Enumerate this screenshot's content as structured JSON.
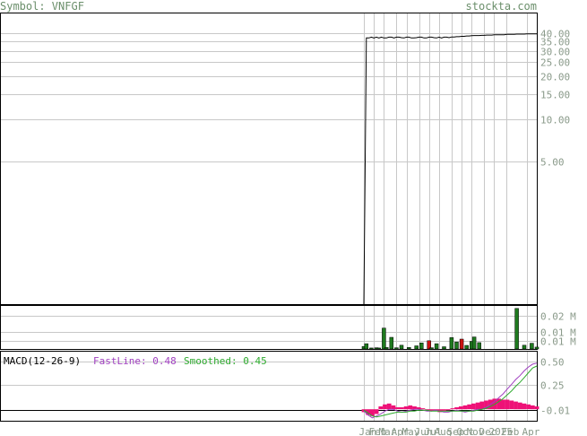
{
  "header": {
    "symbol_label": "Symbol: VNFGF",
    "site": "stockta.com"
  },
  "colors": {
    "price_line": "#000000",
    "grid": "#c8c8c8",
    "volume_up": "#1f7a1f",
    "volume_down": "#cc1111",
    "histogram": "#ee1177",
    "fast_line": "#a040c0",
    "smoothed_line": "#2eaa2e",
    "tick_text": "#8a9a8a",
    "title_text": "#6b8f6b"
  },
  "chart_data": [
    {
      "type": "line",
      "panel": "price",
      "y_scale": "log",
      "ylim": [
        0.5,
        55
      ],
      "y_ticks": [
        "40.00",
        "35.00",
        "30.00",
        "25.00",
        "20.00",
        "15.00",
        "10.00",
        "5.00"
      ],
      "x": [
        "2024-01-05",
        "2024-01-12",
        "2024-01-19",
        "2024-01-26",
        "2024-02-02",
        "2024-02-09",
        "2024-02-16",
        "2024-02-23",
        "2024-03-01",
        "2024-03-08",
        "2024-03-15",
        "2024-03-22",
        "2024-03-29",
        "2024-04-05",
        "2024-04-12",
        "2024-04-19",
        "2024-04-26",
        "2024-05-03",
        "2024-05-10",
        "2024-05-17",
        "2024-05-24",
        "2024-05-31",
        "2024-06-07",
        "2024-06-14",
        "2024-06-21",
        "2024-06-28",
        "2024-07-05",
        "2024-07-12",
        "2024-07-19",
        "2024-07-26",
        "2024-08-02",
        "2024-08-09",
        "2024-08-16",
        "2024-08-23",
        "2024-08-30",
        "2024-09-06",
        "2024-09-13",
        "2024-09-20",
        "2024-09-27",
        "2024-10-04",
        "2024-10-11",
        "2024-10-18",
        "2024-10-25",
        "2024-11-01",
        "2024-11-08",
        "2024-11-15",
        "2024-11-22",
        "2024-11-29",
        "2024-12-06",
        "2024-12-13",
        "2024-12-20",
        "2024-12-27",
        "2025-01-03",
        "2025-01-10",
        "2025-01-17",
        "2025-01-24",
        "2025-01-31",
        "2025-02-07",
        "2025-02-14",
        "2025-02-21",
        "2025-02-28",
        "2025-03-07",
        "2025-03-14",
        "2025-03-21",
        "2025-03-28",
        "2025-04-04",
        "2025-04-11",
        "2025-04-18",
        "2025-04-25",
        "2025-05-02"
      ],
      "values": [
        0.5,
        37,
        37,
        37.5,
        37,
        37.5,
        37,
        37.5,
        37,
        37,
        37.5,
        37.5,
        37,
        37.5,
        37.5,
        37.2,
        37,
        37.5,
        37.5,
        37,
        37,
        37.2,
        37.5,
        37.5,
        37,
        37,
        37.5,
        37.5,
        37.2,
        37,
        37.5,
        37,
        37.5,
        37.5,
        37.2,
        37.6,
        37.6,
        37.8,
        37.8,
        38,
        38,
        38.2,
        38.2,
        38.4,
        38.5,
        38.5,
        38.5,
        38.6,
        38.6,
        38.8,
        38.8,
        38.8,
        39,
        39,
        39,
        39,
        39,
        39.2,
        39.2,
        39.2,
        39.2,
        39.4,
        39.4,
        39.4,
        39.4,
        39.5,
        39.5,
        39.5,
        39.5,
        39.5
      ]
    },
    {
      "type": "bar",
      "panel": "volume",
      "y_ticks": [
        "0.02 M",
        "0.01 M",
        "0.01 M"
      ],
      "bars": [
        {
          "date": "2024-01-05",
          "value": 0.002,
          "direction": "up"
        },
        {
          "date": "2024-01-12",
          "value": 0.0042,
          "direction": "up"
        },
        {
          "date": "2024-01-26",
          "value": 0.0008,
          "direction": "up"
        },
        {
          "date": "2024-02-09",
          "value": 0.001,
          "direction": "up"
        },
        {
          "date": "2024-02-16",
          "value": 0.0008,
          "direction": "up"
        },
        {
          "date": "2024-03-01",
          "value": 0.0165,
          "direction": "up"
        },
        {
          "date": "2024-03-08",
          "value": 0.0012,
          "direction": "up"
        },
        {
          "date": "2024-03-22",
          "value": 0.0092,
          "direction": "up"
        },
        {
          "date": "2024-04-05",
          "value": 0.001,
          "direction": "up"
        },
        {
          "date": "2024-04-19",
          "value": 0.003,
          "direction": "up"
        },
        {
          "date": "2024-05-10",
          "value": 0.0012,
          "direction": "up"
        },
        {
          "date": "2024-05-31",
          "value": 0.0025,
          "direction": "up"
        },
        {
          "date": "2024-06-14",
          "value": 0.0048,
          "direction": "up"
        },
        {
          "date": "2024-07-05",
          "value": 0.0065,
          "direction": "down"
        },
        {
          "date": "2024-07-12",
          "value": 0.001,
          "direction": "up"
        },
        {
          "date": "2024-07-26",
          "value": 0.0042,
          "direction": "up"
        },
        {
          "date": "2024-08-16",
          "value": 0.0018,
          "direction": "up"
        },
        {
          "date": "2024-09-06",
          "value": 0.009,
          "direction": "up"
        },
        {
          "date": "2024-09-20",
          "value": 0.0055,
          "direction": "up"
        },
        {
          "date": "2024-10-04",
          "value": 0.0078,
          "direction": "down"
        },
        {
          "date": "2024-10-18",
          "value": 0.0028,
          "direction": "up"
        },
        {
          "date": "2024-11-01",
          "value": 0.006,
          "direction": "up"
        },
        {
          "date": "2024-11-08",
          "value": 0.0095,
          "direction": "up"
        },
        {
          "date": "2024-11-22",
          "value": 0.005,
          "direction": "up"
        },
        {
          "date": "2025-03-07",
          "value": 0.032,
          "direction": "up"
        },
        {
          "date": "2025-03-28",
          "value": 0.003,
          "direction": "up"
        },
        {
          "date": "2025-04-18",
          "value": 0.0045,
          "direction": "up"
        },
        {
          "date": "2025-05-02",
          "value": 0.0015,
          "direction": "up"
        }
      ]
    },
    {
      "type": "line",
      "panel": "macd",
      "title": "MACD(12-26-9)",
      "ylim": [
        -0.12,
        0.6
      ],
      "y_ticks": [
        "0.50",
        "0.25",
        "-0.01"
      ],
      "series": [
        {
          "name": "FastLine",
          "last": "0.48",
          "values": [
            -0.02,
            -0.06,
            -0.09,
            -0.07,
            -0.05,
            -0.02,
            0.0,
            0.0,
            -0.02,
            -0.03,
            -0.02,
            -0.01,
            0.0,
            0.0,
            -0.01,
            -0.02,
            -0.02,
            -0.01,
            -0.02,
            -0.03,
            -0.03,
            -0.02,
            -0.01,
            -0.02,
            -0.03,
            -0.02,
            -0.01,
            0.0,
            0.0,
            0.02,
            0.05,
            0.08,
            0.12,
            0.16,
            0.21,
            0.26,
            0.31,
            0.35,
            0.4,
            0.44,
            0.47,
            0.48
          ]
        },
        {
          "name": "Smoothed",
          "last": "0.45",
          "values": [
            -0.01,
            -0.04,
            -0.07,
            -0.08,
            -0.07,
            -0.06,
            -0.05,
            -0.04,
            -0.03,
            -0.03,
            -0.03,
            -0.02,
            -0.02,
            -0.01,
            -0.01,
            -0.01,
            -0.02,
            -0.02,
            -0.02,
            -0.02,
            -0.02,
            -0.02,
            -0.02,
            -0.02,
            -0.02,
            -0.02,
            -0.02,
            -0.01,
            0.0,
            0.01,
            0.03,
            0.05,
            0.08,
            0.11,
            0.15,
            0.19,
            0.24,
            0.28,
            0.33,
            0.38,
            0.43,
            0.45
          ]
        },
        {
          "name": "Histogram",
          "values": [
            -0.03,
            -0.06,
            -0.07,
            -0.05,
            0.03,
            0.05,
            0.06,
            0.04,
            0.02,
            0.02,
            0.03,
            0.04,
            0.03,
            0.02,
            0.01,
            -0.01,
            -0.02,
            -0.02,
            -0.03,
            -0.02,
            -0.01,
            0.01,
            0.02,
            0.03,
            0.04,
            0.05,
            0.06,
            0.07,
            0.08,
            0.09,
            0.1,
            0.11,
            0.11,
            0.1,
            0.1,
            0.09,
            0.08,
            0.07,
            0.06,
            0.05,
            0.04,
            0.03
          ]
        }
      ]
    }
  ],
  "x_axis_labels": [
    {
      "label": "Jan",
      "date": "2024-01-05"
    },
    {
      "label": "Feb",
      "date": "2024-02-02"
    },
    {
      "label": "Mar",
      "date": "2024-03-01"
    },
    {
      "label": "Apr",
      "date": "2024-04-05"
    },
    {
      "label": "May",
      "date": "2024-05-03"
    },
    {
      "label": "Jun",
      "date": "2024-06-07"
    },
    {
      "label": "Jul",
      "date": "2024-07-05"
    },
    {
      "label": "Aug",
      "date": "2024-08-02"
    },
    {
      "label": "Sep",
      "date": "2024-09-06"
    },
    {
      "label": "Oct",
      "date": "2024-10-04"
    },
    {
      "label": "Nov",
      "date": "2024-11-01"
    },
    {
      "label": "Dec",
      "date": "2024-12-06"
    },
    {
      "label": "Feb",
      "date": "2025-02-07"
    },
    {
      "label": "2025",
      "date": "2025-01-03"
    },
    {
      "label": "Apr",
      "date": "2025-04-04"
    }
  ]
}
